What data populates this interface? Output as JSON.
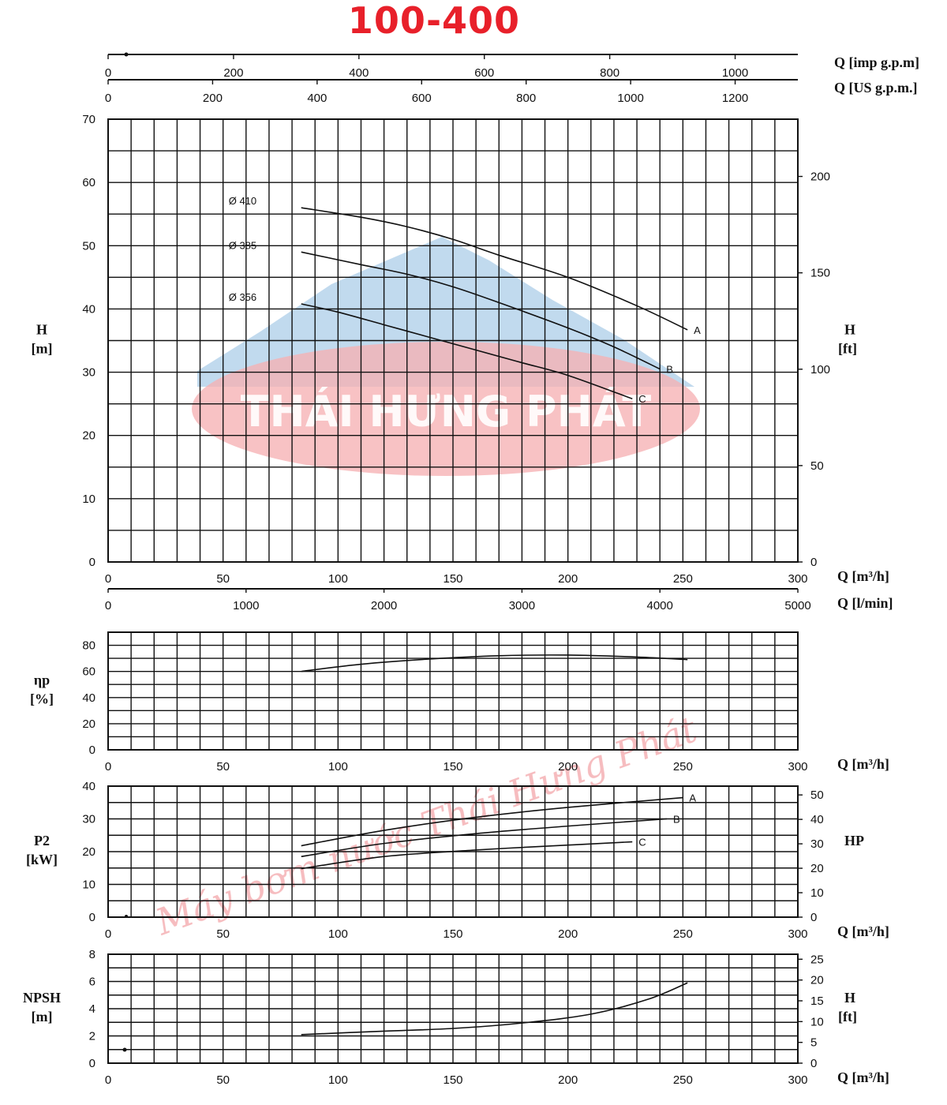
{
  "title": "100-400",
  "watermark": {
    "logo_text": "THÁI HƯNG PHÁT",
    "diagonal_text": "Máy bơm nước Thái Hưng Phát"
  },
  "colors": {
    "title": "#e8202a",
    "grid": "#111111",
    "logo_red": "#f4a5a8",
    "logo_blue": "#9cc4e4"
  },
  "top_axes": [
    {
      "id": "imp",
      "label": "Q [imp g.p.m]",
      "range": [
        0,
        1100
      ],
      "ticks": [
        0,
        200,
        400,
        600,
        800,
        1000
      ]
    },
    {
      "id": "us",
      "label": "Q [US g.p.m.]",
      "range": [
        0,
        1320
      ],
      "ticks": [
        0,
        200,
        400,
        600,
        800,
        1000,
        1200
      ]
    }
  ],
  "chart_data": [
    {
      "id": "head",
      "type": "line",
      "xlabel": "Q [m³/h]",
      "xlabel_alt": "Q [l/min]",
      "xlim": [
        0,
        300
      ],
      "xticks": [
        0,
        50,
        100,
        150,
        200,
        250,
        300
      ],
      "xlim_alt": [
        0,
        5000
      ],
      "xticks_alt": [
        0,
        1000,
        2000,
        3000,
        4000,
        5000
      ],
      "ylabel_name": "H",
      "ylabel_unit": "[m]",
      "ylim": [
        0,
        70
      ],
      "yticks": [
        0,
        10,
        20,
        30,
        40,
        50,
        60,
        70
      ],
      "y2label_name": "H",
      "y2label_unit": "[ft]",
      "y2lim": [
        0,
        229.7
      ],
      "y2ticks": [
        0,
        50,
        100,
        150,
        200
      ],
      "grid": true,
      "series": [
        {
          "name": "Ø 410",
          "end_label": "A",
          "x": [
            84,
            110,
            130,
            150,
            170,
            200,
            230,
            252
          ],
          "y": [
            56,
            54.5,
            53,
            51,
            48.5,
            45,
            40.5,
            36.7
          ]
        },
        {
          "name": "Ø 385",
          "end_label": "B",
          "x": [
            84,
            110,
            130,
            150,
            170,
            200,
            220,
            240
          ],
          "y": [
            49,
            47,
            45.5,
            43.5,
            41,
            37,
            34,
            30.5
          ]
        },
        {
          "name": "Ø 356",
          "end_label": "C",
          "x": [
            84,
            100,
            120,
            140,
            160,
            180,
            200,
            228
          ],
          "y": [
            40.8,
            39.5,
            37.5,
            35.5,
            33.5,
            31.5,
            29.5,
            25.8
          ]
        }
      ]
    },
    {
      "id": "efficiency",
      "type": "line",
      "xlabel": "Q [m³/h]",
      "xlim": [
        0,
        300
      ],
      "xticks": [
        0,
        50,
        100,
        150,
        200,
        250,
        300
      ],
      "ylabel_name": "ηp",
      "ylabel_unit": "[%]",
      "ylim": [
        0,
        90
      ],
      "yticks": [
        0,
        20,
        40,
        60,
        80
      ],
      "grid": true,
      "series": [
        {
          "x": [
            84,
            110,
            140,
            170,
            200,
            230,
            252
          ],
          "y": [
            60,
            65.5,
            69.5,
            72,
            72.5,
            71,
            69
          ]
        }
      ]
    },
    {
      "id": "power",
      "type": "line",
      "xlabel": "Q [m³/h]",
      "xlim": [
        0,
        300
      ],
      "xticks": [
        0,
        50,
        100,
        150,
        200,
        250,
        300
      ],
      "ylabel_name": "P2",
      "ylabel_unit": "[kW]",
      "ylim": [
        0,
        40
      ],
      "yticks": [
        0,
        10,
        20,
        30,
        40
      ],
      "y2label_name": "HP",
      "y2lim": [
        0,
        53.6
      ],
      "y2ticks": [
        0,
        10,
        20,
        30,
        40,
        50
      ],
      "grid": true,
      "series": [
        {
          "end_label": "A",
          "x": [
            84,
            120,
            160,
            200,
            250
          ],
          "y": [
            21.8,
            26.5,
            30.5,
            33.5,
            36.5
          ]
        },
        {
          "end_label": "B",
          "x": [
            84,
            120,
            160,
            200,
            243
          ],
          "y": [
            18.5,
            22.5,
            25.5,
            27.8,
            30
          ]
        },
        {
          "end_label": "C",
          "x": [
            84,
            120,
            160,
            200,
            228
          ],
          "y": [
            14.8,
            18.5,
            20.5,
            22,
            23
          ]
        }
      ]
    },
    {
      "id": "npsh",
      "type": "line",
      "xlabel": "Q [m³/h]",
      "xlim": [
        0,
        300
      ],
      "xticks": [
        0,
        50,
        100,
        150,
        200,
        250,
        300
      ],
      "ylabel_name": "NPSH",
      "ylabel_unit": "[m]",
      "ylim": [
        0,
        8
      ],
      "yticks": [
        0,
        2,
        4,
        6,
        8
      ],
      "y2label_name": "H",
      "y2label_unit": "[ft]",
      "y2lim": [
        0,
        26.2
      ],
      "y2ticks": [
        0,
        5,
        10,
        15,
        20,
        25
      ],
      "grid": true,
      "series": [
        {
          "x": [
            84,
            120,
            150,
            180,
            210,
            235,
            252
          ],
          "y": [
            2.1,
            2.35,
            2.55,
            2.95,
            3.6,
            4.7,
            5.9
          ]
        }
      ]
    }
  ]
}
